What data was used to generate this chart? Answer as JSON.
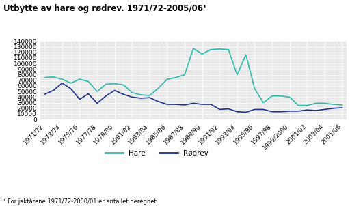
{
  "title": "Utbytte av hare og rødrev. 1971/72-2005/06¹",
  "footnote": "¹ For jaktårene 1971/72-2000/01 er antallet beregnet.",
  "ylim": [
    0,
    140000
  ],
  "yticks": [
    0,
    10000,
    20000,
    30000,
    40000,
    50000,
    60000,
    70000,
    80000,
    90000,
    100000,
    110000,
    120000,
    130000,
    140000
  ],
  "xtick_labels": [
    "1971/72",
    "1973/74",
    "1975/76",
    "1977/78",
    "1979/80",
    "1981/82",
    "1983/84",
    "1985/86",
    "1987/88",
    "1989/90",
    "1991/92",
    "1993/94",
    "1995/96",
    "1997/98",
    "1999/2000",
    "2001/02",
    "2003/04",
    "2005/06"
  ],
  "hare_color": "#2ABAAB",
  "rodrev_color": "#1B2E8C",
  "hare_values": [
    75000,
    76000,
    72000,
    65000,
    72000,
    68000,
    50000,
    63000,
    64000,
    62000,
    48000,
    44000,
    43000,
    56000,
    72000,
    75000,
    80000,
    127000,
    117000,
    125000,
    126000,
    125000,
    80000,
    116000,
    55000,
    30000,
    42000,
    42000,
    40000,
    25000,
    25000,
    29000,
    29000,
    27000,
    26000
  ],
  "rodrev_values": [
    45000,
    52000,
    65000,
    55000,
    36000,
    46000,
    29000,
    42000,
    52000,
    45000,
    40000,
    38000,
    39000,
    32000,
    27000,
    27000,
    26000,
    29000,
    27000,
    27000,
    18000,
    19000,
    14000,
    13000,
    18000,
    18000,
    14000,
    14000,
    15000,
    15000,
    17000,
    16000,
    18000,
    20000,
    21000
  ],
  "background_color": "#e8e8e8",
  "grid_color": "#ffffff",
  "legend_hare": "Hare",
  "legend_rodrev": "Rødrev"
}
